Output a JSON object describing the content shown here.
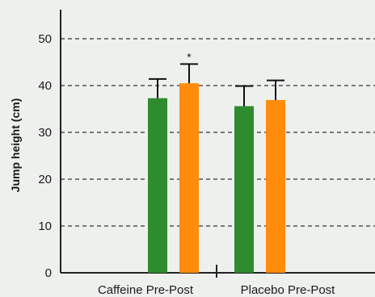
{
  "chart_data": {
    "type": "bar",
    "title": "",
    "xlabel": "",
    "ylabel": "Jump height (cm)",
    "ylim": [
      0,
      55
    ],
    "yticks": [
      0,
      10,
      20,
      30,
      40,
      50
    ],
    "grid": "dashed horizontal at 10, 20, 30, 40, 50",
    "categories": [
      "Caffeine Pre-Post",
      "Placebo Pre-Post"
    ],
    "series": [
      {
        "color": "#2e8b2e",
        "values": [
          37.3,
          35.6
        ],
        "errors": [
          4.1,
          4.3
        ]
      },
      {
        "color": "#ff8c0a",
        "values": [
          40.5,
          36.9
        ],
        "errors": [
          4.1,
          4.2
        ]
      }
    ],
    "annotations": [
      {
        "category": 0,
        "series": 1,
        "text": "*"
      }
    ]
  }
}
